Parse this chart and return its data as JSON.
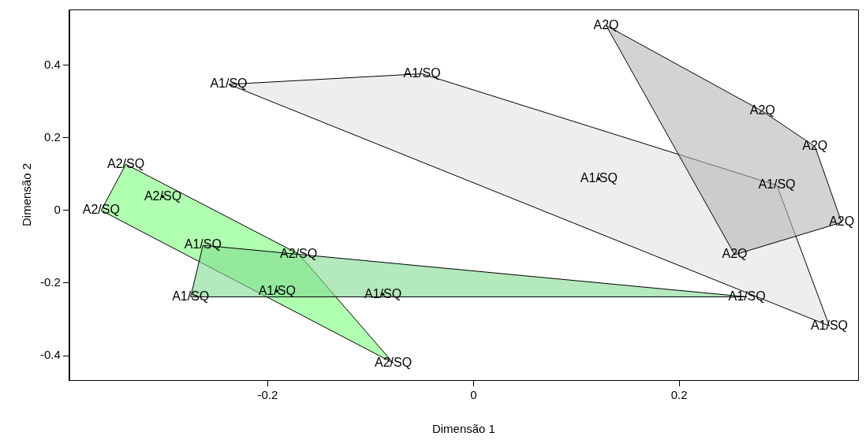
{
  "chart_data": {
    "type": "scatter",
    "xlabel": "Dimensão 1",
    "ylabel": "Dimensão 2",
    "xlim": [
      -0.393,
      0.374
    ],
    "ylim": [
      -0.467,
      0.553
    ],
    "xticks": [
      -0.2,
      0,
      0.2
    ],
    "yticks": [
      -0.4,
      -0.2,
      0,
      0.2,
      0.4
    ],
    "grid": false,
    "legend": false,
    "marker": "circle",
    "series": [
      {
        "type": "area",
        "marker": "none",
        "color": "#e3e3e3",
        "x": [
          -0.238,
          -0.05,
          0.295,
          0.346
        ],
        "values": [
          0.347,
          0.376,
          0.069,
          -0.318
        ],
        "value_labels": [
          "A1/SQ",
          "A1/SQ",
          "A1/SQ",
          "A1/SQ"
        ]
      },
      {
        "color": "#000000",
        "x": [
          0.122
        ],
        "values": [
          0.087
        ],
        "value_labels": [
          "A1/SQ"
        ]
      },
      {
        "type": "area",
        "marker": "none",
        "color": "#b5b5b5",
        "x": [
          0.129,
          0.281,
          0.332,
          0.358,
          0.254
        ],
        "values": [
          0.509,
          0.273,
          0.176,
          -0.033,
          -0.122
        ],
        "value_labels": [
          "A2Q",
          "A2Q",
          "A2Q",
          "A2Q",
          "A2Q"
        ]
      },
      {
        "type": "area",
        "marker": "none",
        "color": "#7dff7d",
        "x": [
          -0.338,
          -0.17,
          -0.078,
          -0.362
        ],
        "values": [
          0.127,
          -0.12,
          -0.42,
          0.0
        ],
        "value_labels": [
          "A2/SQ",
          "A2/SQ",
          "A2/SQ",
          "A2/SQ"
        ]
      },
      {
        "color": "#000000",
        "x": [
          -0.302
        ],
        "values": [
          0.038
        ],
        "value_labels": [
          "A2/SQ"
        ]
      },
      {
        "type": "area",
        "marker": "none",
        "color": "#80da90",
        "x": [
          -0.263,
          0.266,
          -0.275
        ],
        "values": [
          -0.096,
          -0.238,
          -0.238
        ],
        "value_labels": [
          "A1/SQ",
          "A1/SQ",
          "A1/SQ"
        ]
      },
      {
        "color": "#000000",
        "x": [
          -0.191,
          -0.088
        ],
        "values": [
          -0.222,
          -0.231
        ],
        "value_labels": [
          "A1/SQ",
          "A1/SQ"
        ]
      }
    ]
  }
}
